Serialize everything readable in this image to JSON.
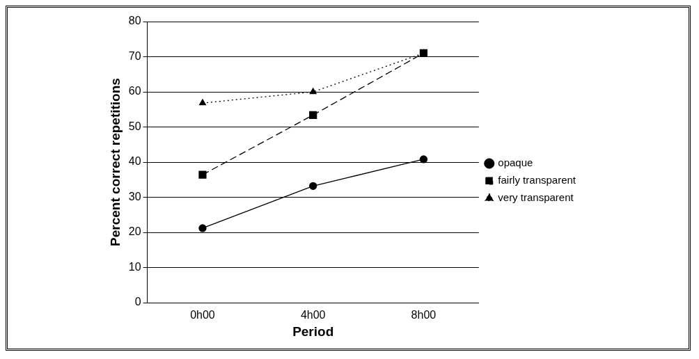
{
  "chart_data": {
    "type": "line",
    "xlabel": "Period",
    "ylabel": "Percent correct repetitions",
    "categories": [
      "0h00",
      "4h00",
      "8h00"
    ],
    "series": [
      {
        "name": "opaque",
        "color": "#000000",
        "marker": "circle",
        "line_style": "solid",
        "values": [
          21.2,
          33.2,
          40.8
        ]
      },
      {
        "name": "fairly transparent",
        "color": "#000000",
        "marker": "square",
        "line_style": "dashed",
        "values": [
          36.4,
          53.4,
          71
        ]
      },
      {
        "name": "very transparent",
        "color": "#000000",
        "marker": "triangle",
        "line_style": "dotted",
        "values": [
          56.8,
          60,
          71
        ]
      }
    ],
    "ylim": [
      0,
      80
    ],
    "yticks": [
      0,
      10,
      20,
      30,
      40,
      50,
      60,
      70,
      80
    ],
    "grid": "y",
    "legend": "right"
  }
}
